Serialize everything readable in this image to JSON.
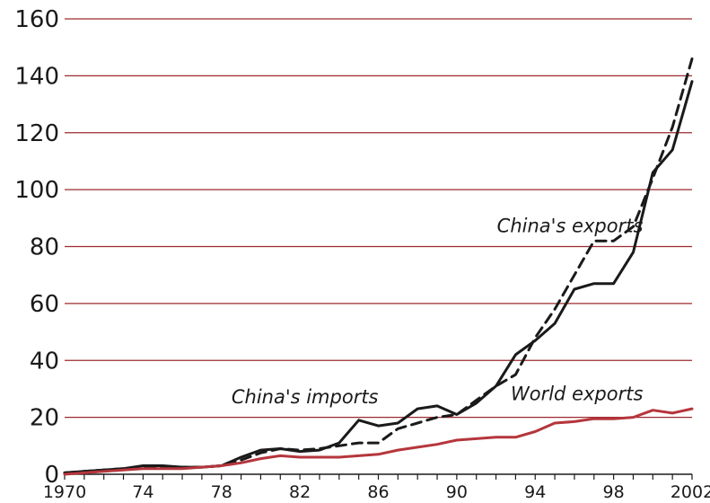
{
  "chart_data": {
    "type": "line",
    "title": "",
    "xlabel": "",
    "ylabel": "",
    "xlim": [
      1970,
      2002
    ],
    "ylim": [
      0,
      160
    ],
    "grid": true,
    "yticks": [
      "0",
      "20",
      "40",
      "60",
      "80",
      "100",
      "120",
      "140",
      "160"
    ],
    "xticks": [
      {
        "x": 1970,
        "label": "1970"
      },
      {
        "x": 1974,
        "label": "74"
      },
      {
        "x": 1978,
        "label": "78"
      },
      {
        "x": 1982,
        "label": "82"
      },
      {
        "x": 1986,
        "label": "86"
      },
      {
        "x": 1990,
        "label": "90"
      },
      {
        "x": 1994,
        "label": "94"
      },
      {
        "x": 1998,
        "label": "98"
      },
      {
        "x": 2002,
        "label": "2002"
      }
    ],
    "x": [
      1970,
      1971,
      1972,
      1973,
      1974,
      1975,
      1976,
      1977,
      1978,
      1979,
      1980,
      1981,
      1982,
      1983,
      1984,
      1985,
      1986,
      1987,
      1988,
      1989,
      1990,
      1991,
      1992,
      1993,
      1994,
      1995,
      1996,
      1997,
      1998,
      1999,
      2000,
      2001,
      2002
    ],
    "series": [
      {
        "name": "China's exports",
        "color": "#1a1a1a",
        "style": "dashed",
        "values": [
          0.5,
          1,
          1.5,
          2,
          2.5,
          2.5,
          2.5,
          2.5,
          3,
          5,
          7.5,
          9,
          8.5,
          9,
          10,
          11,
          11,
          16,
          18,
          20,
          21,
          26,
          31,
          35,
          48,
          58,
          70,
          82,
          82,
          87,
          104,
          122,
          146
        ]
      },
      {
        "name": "China's imports",
        "color": "#1a1a1a",
        "style": "solid",
        "values": [
          0.5,
          1,
          1.5,
          2,
          3,
          3,
          2.5,
          2.5,
          3,
          6,
          8.5,
          9,
          8,
          8.5,
          11,
          19,
          17,
          18,
          23,
          24,
          21,
          25,
          31,
          42,
          47,
          53,
          65,
          67,
          67,
          78,
          106,
          114,
          138
        ]
      },
      {
        "name": "World exports",
        "color": "#b5363c",
        "style": "solid",
        "values": [
          0,
          0.5,
          1,
          1.5,
          2,
          2,
          2,
          2.5,
          3,
          4,
          5.5,
          6.5,
          6,
          6,
          6,
          6.5,
          7,
          8.5,
          9.5,
          10.5,
          12,
          12.5,
          13,
          13,
          15,
          18,
          18.5,
          19.5,
          19.5,
          20,
          22.5,
          21.5,
          23
        ]
      }
    ],
    "annotations": [
      {
        "text": "China's exports",
        "x": 1999.5,
        "y": 85
      },
      {
        "text": "China's imports",
        "x": 1986,
        "y": 25
      },
      {
        "text": "World exports",
        "x": 1999.5,
        "y": 26
      }
    ],
    "colors": {
      "grid": "#9e2a2f",
      "axis": "#1a1a1a"
    }
  }
}
